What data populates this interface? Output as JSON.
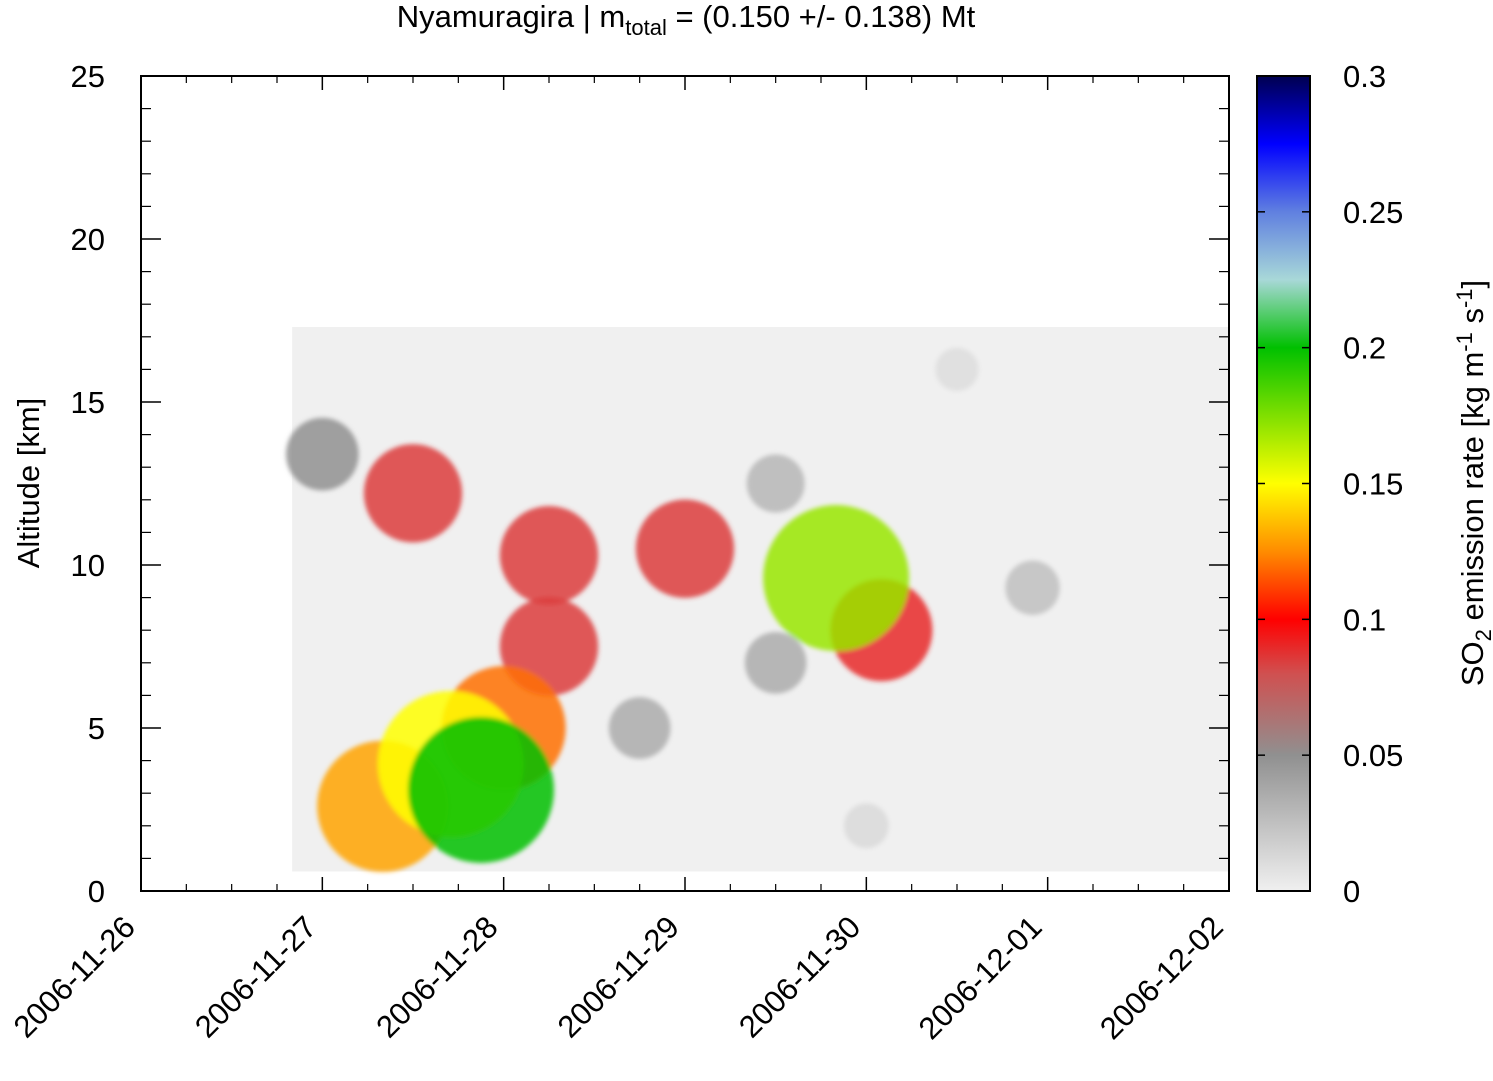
{
  "chart_data": {
    "type": "heatmap",
    "title": {
      "prefix": "Nyamuragira | m",
      "subscript": "total",
      "suffix": " = (0.150 +/- 0.138) Mt"
    },
    "xlabel": "",
    "ylabel": "Altitude [km]",
    "colorbar_label": {
      "p1": "SO",
      "sub": "2",
      "p2": " emission rate [kg m",
      "sup1": "-1",
      "p3": " s",
      "sup2": "-1",
      "p4": "]"
    },
    "x_ticks": [
      "2006-11-26",
      "2006-11-27",
      "2006-11-28",
      "2006-11-29",
      "2006-11-30",
      "2006-12-01",
      "2006-12-02"
    ],
    "xlim": [
      "2006-11-26",
      "2006-12-02"
    ],
    "y_ticks": [
      "0",
      "5",
      "10",
      "15",
      "20",
      "25"
    ],
    "ylim": [
      0,
      25
    ],
    "colorbar_ticks": [
      "0",
      "0.05",
      "0.1",
      "0.15",
      "0.2",
      "0.25",
      "0.3"
    ],
    "colorbar_range": [
      0,
      0.3
    ],
    "colormap": [
      [
        0.0,
        "#f0f0f0"
      ],
      [
        0.05,
        "#909090"
      ],
      [
        0.08,
        "#d05050"
      ],
      [
        0.1,
        "#ff0000"
      ],
      [
        0.125,
        "#ff8c00"
      ],
      [
        0.15,
        "#ffff00"
      ],
      [
        0.2,
        "#00c000"
      ],
      [
        0.225,
        "#a8d8d8"
      ],
      [
        0.25,
        "#6080e0"
      ],
      [
        0.275,
        "#0000ff"
      ],
      [
        0.3,
        "#000050"
      ]
    ],
    "data_domain": {
      "time": [
        "2006-11-26T20:00",
        "2006-12-02T00:00"
      ],
      "altitude_km": [
        0.6,
        17.3
      ]
    },
    "features": [
      {
        "time": "2006-11-27T21:00",
        "altitude_km": 3.1,
        "value": 0.2
      },
      {
        "time": "2006-11-27T17:00",
        "altitude_km": 3.9,
        "value": 0.15
      },
      {
        "time": "2006-11-27T08:00",
        "altitude_km": 2.6,
        "value": 0.13
      },
      {
        "time": "2006-11-28T00:00",
        "altitude_km": 5.0,
        "value": 0.12
      },
      {
        "time": "2006-11-27T12:00",
        "altitude_km": 12.2,
        "value": 0.085
      },
      {
        "time": "2006-11-28T06:00",
        "altitude_km": 10.3,
        "value": 0.085
      },
      {
        "time": "2006-11-28T06:00",
        "altitude_km": 7.5,
        "value": 0.085
      },
      {
        "time": "2006-11-29T00:00",
        "altitude_km": 10.5,
        "value": 0.085
      },
      {
        "time": "2006-11-29T20:00",
        "altitude_km": 9.6,
        "value": 0.17
      },
      {
        "time": "2006-11-30T02:00",
        "altitude_km": 8.0,
        "value": 0.09
      },
      {
        "time": "2006-11-27T00:00",
        "altitude_km": 13.4,
        "value": 0.05
      },
      {
        "time": "2006-11-28T18:00",
        "altitude_km": 5.0,
        "value": 0.035
      },
      {
        "time": "2006-11-29T12:00",
        "altitude_km": 7.0,
        "value": 0.035
      },
      {
        "time": "2006-11-30T22:00",
        "altitude_km": 9.3,
        "value": 0.025
      },
      {
        "time": "2006-11-29T12:00",
        "altitude_km": 12.5,
        "value": 0.03
      },
      {
        "time": "2006-11-30T12:00",
        "altitude_km": 16.0,
        "value": 0.01
      },
      {
        "time": "2006-11-30T00:00",
        "altitude_km": 2.0,
        "value": 0.012
      }
    ]
  }
}
